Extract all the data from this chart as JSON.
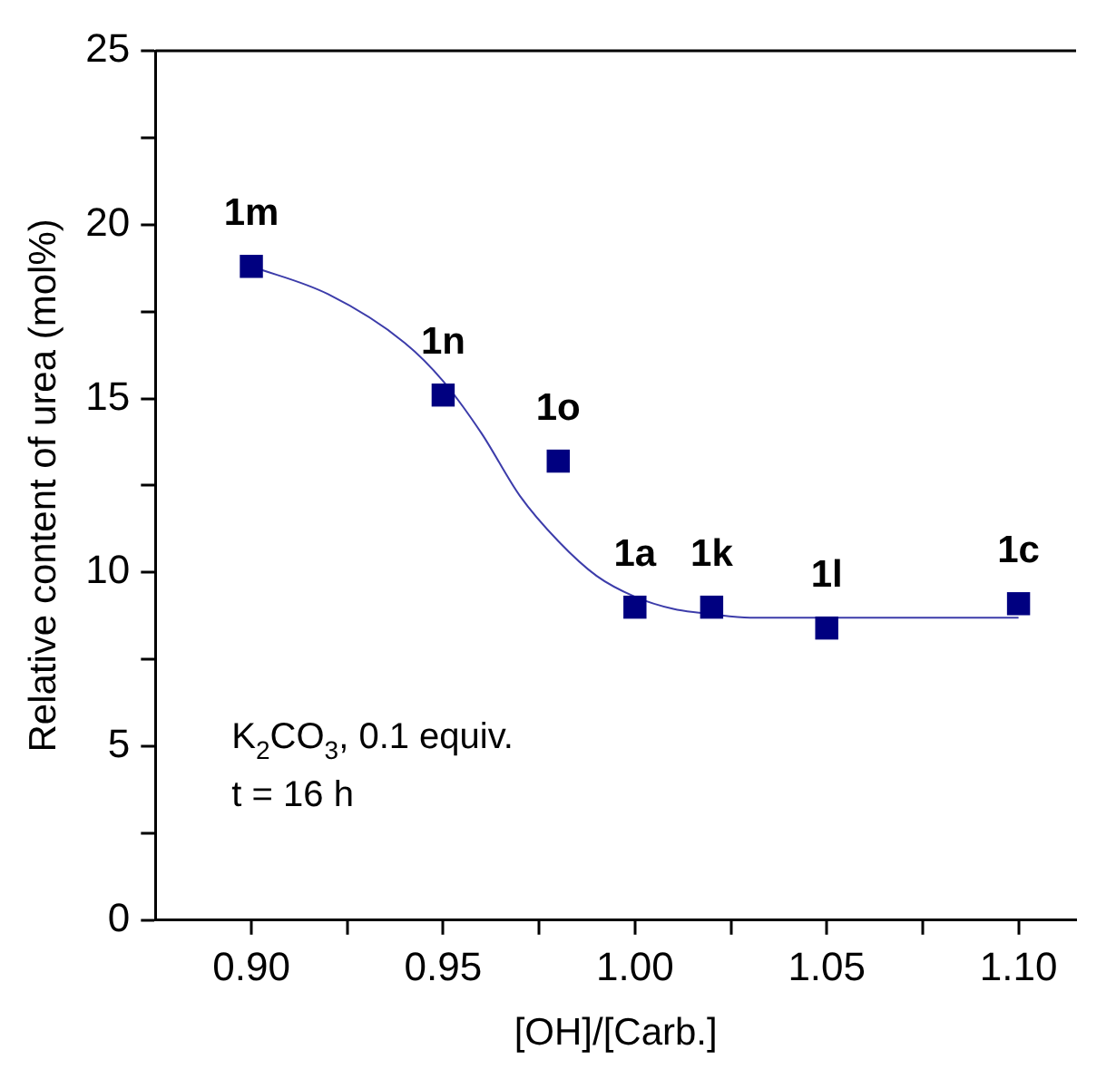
{
  "chart_data": {
    "type": "scatter",
    "xlabel": "[OH]/[Carb.]",
    "ylabel": "Relative content of urea (mol%)",
    "xlim": [
      0.875,
      1.115
    ],
    "xticks": [
      {
        "value": 0.9,
        "label": "0.90"
      },
      {
        "value": 0.925,
        "label": null
      },
      {
        "value": 0.95,
        "label": "0.95"
      },
      {
        "value": 0.975,
        "label": null
      },
      {
        "value": 1.0,
        "label": "1.00"
      },
      {
        "value": 1.025,
        "label": null
      },
      {
        "value": 1.05,
        "label": "1.05"
      },
      {
        "value": 1.075,
        "label": null
      },
      {
        "value": 1.1,
        "label": "1.10"
      }
    ],
    "ylim": [
      0,
      25
    ],
    "yticks": [
      0,
      {
        "value": 2.5,
        "label": null
      },
      5,
      {
        "value": 7.5,
        "label": null
      },
      10,
      {
        "value": 12.5,
        "label": null
      },
      15,
      {
        "value": 17.5,
        "label": null
      },
      20,
      {
        "value": 22.5,
        "label": null
      },
      25
    ],
    "grid": false,
    "legend": false,
    "series": [
      {
        "marker": "square",
        "color": "#000080",
        "x": [
          0.9,
          0.95,
          0.98,
          1.0,
          1.02,
          1.05,
          1.1
        ],
        "values": [
          18.8,
          15.1,
          13.2,
          9.0,
          9.0,
          8.4,
          9.1
        ]
      },
      {
        "type": "line",
        "marker": "none",
        "color": "#3c3caa",
        "x": [
          0.9,
          0.92,
          0.94,
          0.95,
          0.96,
          0.97,
          0.98,
          0.99,
          1.0,
          1.01,
          1.02,
          1.03,
          1.05,
          1.1
        ],
        "values": [
          18.8,
          18.0,
          16.6,
          15.5,
          14.0,
          12.2,
          10.9,
          9.9,
          9.3,
          8.95,
          8.8,
          8.7,
          8.7,
          8.7
        ]
      }
    ],
    "annotations": [
      {
        "text": "1m",
        "x": 0.9,
        "y": 18.8
      },
      {
        "text": "1n",
        "x": 0.95,
        "y": 15.1
      },
      {
        "text": "1o",
        "x": 0.98,
        "y": 13.2
      },
      {
        "text": "1a",
        "x": 1.0,
        "y": 9.0
      },
      {
        "text": "1k",
        "x": 1.02,
        "y": 9.0
      },
      {
        "text": "1l",
        "x": 1.05,
        "y": 8.4
      },
      {
        "text": "1c",
        "x": 1.1,
        "y": 9.1
      },
      "K$_{2}$CO$_{3}$, 0.1 equiv.",
      "t = 16 h"
    ]
  }
}
